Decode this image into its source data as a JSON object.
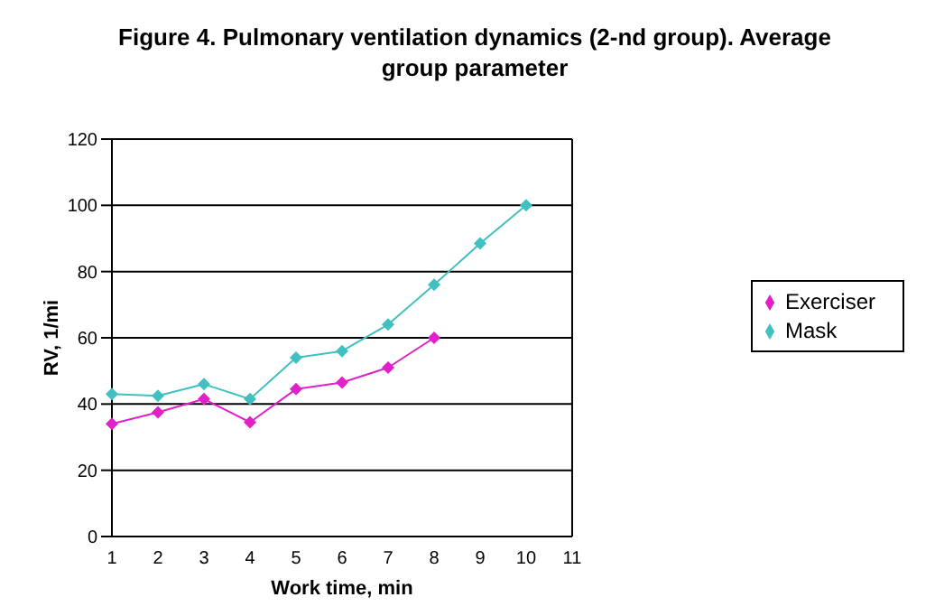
{
  "chart_data": {
    "type": "line",
    "title": "Figure 4. Pulmonary ventilation dynamics (2-nd group). Average group parameter",
    "xlabel": "Work time, min",
    "ylabel": "RV, 1/mi",
    "categories": [
      "1",
      "2",
      "3",
      "4",
      "5",
      "6",
      "7",
      "8",
      "9",
      "10",
      "11"
    ],
    "series": [
      {
        "name": "Exerciser",
        "color": "#e020c8",
        "values": [
          34,
          37.5,
          41.5,
          34.5,
          44.5,
          46.5,
          51,
          60,
          null,
          null,
          null
        ]
      },
      {
        "name": "Mask",
        "color": "#40c0c0",
        "values": [
          43,
          42.5,
          46,
          41.5,
          54,
          56,
          64,
          76,
          88.5,
          100,
          null
        ]
      }
    ],
    "ylim": [
      0,
      120
    ],
    "yticks": [
      0,
      20,
      40,
      60,
      80,
      100,
      120
    ],
    "grid": "y",
    "legend": "right",
    "marker": "diamond",
    "line_style": "solid"
  }
}
